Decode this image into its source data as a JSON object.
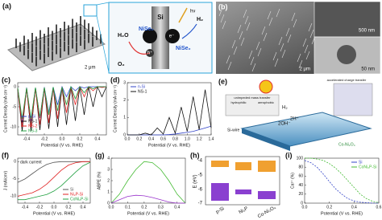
{
  "panels": {
    "a": {
      "letter": "(a)",
      "scale": "2 μm",
      "labels": [
        "Si",
        "hν",
        "H₂O",
        "O₂",
        "NiSe₂",
        "e⁻",
        "h⁺",
        "NiSe₂",
        "H₂"
      ]
    },
    "b": {
      "letter": "(b)",
      "scales": [
        "500 nm",
        "2 μm",
        "50 nm"
      ]
    },
    "e": {
      "letter": "(e)",
      "labels": [
        "accelerated charge transfer",
        "unimpeded mass transfer",
        "hydrophilic",
        "aerophobic",
        "H₂",
        "2H⁺",
        "2OH⁻",
        "Si-wire",
        "Co-Ni₂O₄"
      ]
    },
    "h": {
      "letter": "(h)",
      "ylabel": "E (eV)",
      "yticks": [
        "-4",
        "-5",
        "-6",
        "-7"
      ],
      "categories": [
        "p-Si",
        "Ni₂P",
        "Co-Ni₂O₄"
      ]
    },
    "letters": [
      "(c)",
      "(d)",
      "(f)",
      "(g)",
      "(i)"
    ]
  },
  "chart_data": [
    {
      "type": "line",
      "xlabel": "Potential (V vs. RHE)",
      "ylabel": "Current Density (mA cm⁻²)",
      "x": [
        -0.5,
        -0.45,
        -0.4,
        -0.35,
        -0.3,
        -0.25,
        -0.2,
        -0.15,
        -0.1,
        -0.05,
        0,
        0.05,
        0.1,
        0.15,
        0.2,
        0.25,
        0.3,
        0.35,
        0.4,
        0.45,
        0.5
      ],
      "series": [
        {
          "name": "p-Si",
          "color": "#3344c8",
          "values": [
            -0.3,
            -9,
            -0.2,
            -8.5,
            -0.2,
            -7.8,
            -0.1,
            -6.5,
            -0.1,
            -4.5,
            0,
            -2.5,
            0,
            -1,
            0,
            -0.3,
            0,
            0,
            0,
            0,
            0
          ]
        },
        {
          "name": "NS-1",
          "color": "#111111",
          "values": [
            -0.5,
            -11,
            -0.4,
            -11,
            -0.3,
            -10.8,
            -0.3,
            -10.5,
            -0.2,
            -10,
            -0.2,
            -9.5,
            -0.1,
            -8.5,
            -0.1,
            -7,
            0,
            -5,
            0,
            -2.5,
            0
          ]
        },
        {
          "name": "NS-2",
          "color": "#e02020",
          "values": [
            -0.4,
            -10,
            -0.3,
            -10,
            -0.3,
            -9.5,
            -0.2,
            -9,
            -0.2,
            -8,
            -0.1,
            -6.5,
            -0.1,
            -4.5,
            0,
            -2.5,
            0,
            -1,
            0,
            -0.2,
            0
          ]
        },
        {
          "name": "NS-3",
          "color": "#20a040",
          "values": [
            -0.3,
            -8,
            -0.3,
            -8,
            -0.2,
            -7.5,
            -0.2,
            -7,
            -0.1,
            -6,
            -0.1,
            -4.5,
            0,
            -3,
            0,
            -1.5,
            0,
            -0.5,
            0,
            0,
            0
          ]
        }
      ],
      "xlim": [
        -0.5,
        0.5
      ],
      "xticks": [
        -0.4,
        -0.2,
        {
          "value": 0,
          "label": "0.0"
        },
        0.2,
        0.4
      ],
      "ylim": [
        -12,
        1
      ],
      "yticks": [
        -10,
        -5,
        0
      ],
      "legend": "lower left"
    },
    {
      "type": "line",
      "xlabel": "Potential (V vs. RHE)",
      "ylabel": "Current Density (mA cm⁻²)",
      "x": [
        0,
        0.1,
        0.2,
        0.3,
        0.4,
        0.5,
        0.6,
        0.7,
        0.8,
        0.9,
        1,
        1.1,
        1.2,
        1.3,
        1.4
      ],
      "series": [
        {
          "name": "n-Si",
          "color": "#3344c8",
          "values": [
            0,
            0,
            0,
            0,
            0,
            0,
            0,
            0.02,
            0.05,
            0.1,
            0.15,
            0.2,
            0.3,
            0.4,
            0.5
          ]
        },
        {
          "name": "NS-1",
          "color": "#111111",
          "values": [
            0,
            0,
            0,
            0.1,
            0,
            0.4,
            0.05,
            1,
            0.1,
            1.6,
            0.2,
            2.2,
            0.3,
            2.6,
            0.4
          ]
        }
      ],
      "xlim": [
        0,
        1.4
      ],
      "xticks": [
        {
          "value": 0,
          "label": "0.0"
        },
        0.2,
        0.4,
        0.6,
        0.8,
        {
          "value": 1,
          "label": "1.0"
        },
        1.2,
        1.4
      ],
      "ylim": [
        0,
        3
      ],
      "yticks": [
        0,
        1,
        2,
        3
      ],
      "legend": "upper left"
    },
    {
      "type": "line",
      "xlabel": "Potential (V vs. RHE)",
      "ylabel": "J (mA/cm²)",
      "annotation": "dark current",
      "x": [
        -0.5,
        -0.4,
        -0.3,
        -0.2,
        -0.1,
        0,
        0.1,
        0.2,
        0.3,
        0.4,
        0.5
      ],
      "series": [
        {
          "name": "Si",
          "color": "#555555",
          "values": [
            -6,
            -5,
            -3.5,
            -2,
            -0.8,
            -0.2,
            0,
            0,
            0,
            0,
            0
          ]
        },
        {
          "name": "Ni₂P-Si",
          "color": "#e02020",
          "values": [
            -10,
            -9.5,
            -9,
            -8,
            -6.5,
            -4.5,
            -2.5,
            -1,
            -0.3,
            0,
            0
          ]
        },
        {
          "name": "CoNi₂P-Si",
          "color": "#20a040",
          "values": [
            -11,
            -11,
            -10.5,
            -10,
            -9.5,
            -8.5,
            -7,
            -5,
            -3,
            -1.2,
            -0.2
          ]
        }
      ],
      "xlim": [
        -0.5,
        0.5
      ],
      "xticks": [
        -0.4,
        -0.2,
        {
          "value": 0,
          "label": "0.0"
        },
        0.2,
        0.4
      ],
      "ylim": [
        -12,
        1
      ],
      "yticks": [
        -10,
        -5,
        0
      ],
      "legend": "lower right"
    },
    {
      "type": "line",
      "xlabel": "Potential (V vs. RHE)",
      "ylabel": "ABPE (%)",
      "x": [
        0,
        0.05,
        0.1,
        0.15,
        0.2,
        0.25,
        0.3,
        0.35,
        0.4,
        0.45
      ],
      "series": [
        {
          "color": "#44bb33",
          "values": [
            0,
            0.8,
            2,
            3,
            3.7,
            3.6,
            3,
            2,
            0.8,
            0
          ]
        },
        {
          "color": "#9933cc",
          "values": [
            0,
            0.3,
            0.6,
            0.7,
            0.65,
            0.5,
            0.3,
            0.1,
            0,
            0
          ]
        }
      ],
      "xlim": [
        0,
        0.45
      ],
      "xticks": [
        {
          "value": 0,
          "label": "0.0"
        },
        0.1,
        0.2,
        0.3,
        0.4
      ],
      "ylim": [
        0,
        4
      ],
      "yticks": [
        0,
        1,
        2,
        3,
        4
      ]
    },
    {
      "type": "line",
      "xlabel": "Potential (V vs. RHE)",
      "ylabel": "Ca²⁺ (%)",
      "dashed": true,
      "x": [
        0,
        0.05,
        0.1,
        0.15,
        0.2,
        0.25,
        0.3,
        0.35,
        0.4,
        0.45,
        0.5,
        0.55,
        0.6
      ],
      "series": [
        {
          "name": "Si",
          "color": "#3344c8",
          "values": [
            95,
            90,
            80,
            65,
            48,
            32,
            20,
            10,
            5,
            2,
            1,
            0,
            0
          ]
        },
        {
          "name": "CoNi₂P-Si",
          "color": "#44bb33",
          "values": [
            100,
            100,
            98,
            95,
            88,
            78,
            65,
            50,
            35,
            20,
            10,
            4,
            1
          ]
        }
      ],
      "xlim": [
        0,
        0.6
      ],
      "xticks": [
        {
          "value": 0,
          "label": "0.0"
        },
        0.2,
        0.4,
        0.6
      ],
      "ylim": [
        0,
        100
      ],
      "yticks": [
        0,
        20,
        40,
        60,
        80,
        100
      ],
      "legend": "upper right"
    }
  ]
}
